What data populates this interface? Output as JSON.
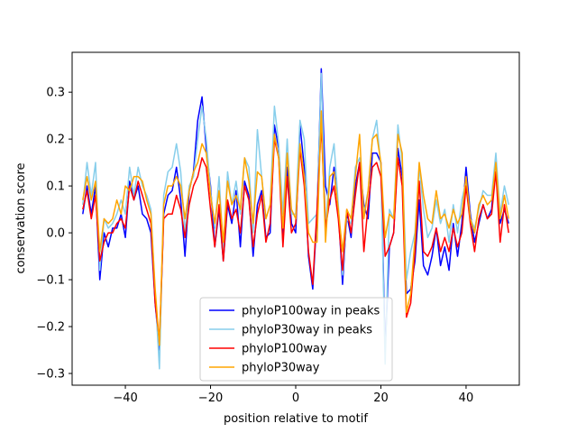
{
  "chart_data": {
    "type": "line",
    "title": "",
    "xlabel": "position relative to motif",
    "ylabel": "conservation score",
    "xlim": [
      -52.5,
      52.5
    ],
    "ylim": [
      -0.325,
      0.385
    ],
    "xticks": [
      -40,
      -20,
      0,
      20,
      40
    ],
    "yticks": [
      -0.3,
      -0.2,
      -0.1,
      0.0,
      0.1,
      0.2,
      0.3
    ],
    "ytick_labels": [
      "−0.3",
      "−0.2",
      "−0.1",
      "0.0",
      "0.1",
      "0.2",
      "0.3"
    ],
    "xtick_labels": [
      "−40",
      "−20",
      "0",
      "20",
      "40"
    ],
    "grid": false,
    "legend_position": "lower-center",
    "x": [
      -50,
      -49,
      -48,
      -47,
      -46,
      -45,
      -44,
      -43,
      -42,
      -41,
      -40,
      -39,
      -38,
      -37,
      -36,
      -35,
      -34,
      -33,
      -32,
      -31,
      -30,
      -29,
      -28,
      -27,
      -26,
      -25,
      -24,
      -23,
      -22,
      -21,
      -20,
      -19,
      -18,
      -17,
      -16,
      -15,
      -14,
      -13,
      -12,
      -11,
      -10,
      -9,
      -8,
      -7,
      -6,
      -5,
      -4,
      -3,
      -2,
      -1,
      0,
      1,
      2,
      3,
      4,
      5,
      6,
      7,
      8,
      9,
      10,
      11,
      12,
      13,
      14,
      15,
      16,
      17,
      18,
      19,
      20,
      21,
      22,
      23,
      24,
      25,
      26,
      27,
      28,
      29,
      30,
      31,
      32,
      33,
      34,
      35,
      36,
      37,
      38,
      39,
      40,
      41,
      42,
      43,
      44,
      45,
      46,
      47,
      48,
      49,
      50
    ],
    "series": [
      {
        "name": "phyloP100way in peaks",
        "color": "#0000ff",
        "values": [
          0.04,
          0.1,
          0.04,
          0.1,
          -0.1,
          0.0,
          -0.03,
          0.01,
          0.01,
          0.04,
          -0.01,
          0.11,
          0.07,
          0.1,
          0.04,
          0.03,
          0.0,
          -0.15,
          -0.25,
          0.04,
          0.08,
          0.09,
          0.14,
          0.07,
          -0.05,
          0.09,
          0.13,
          0.24,
          0.29,
          0.18,
          0.1,
          -0.03,
          0.05,
          -0.06,
          0.06,
          0.02,
          0.09,
          -0.03,
          0.11,
          0.08,
          -0.05,
          0.06,
          0.09,
          -0.01,
          0.0,
          0.23,
          0.18,
          -0.02,
          0.14,
          0.02,
          0.0,
          0.23,
          0.14,
          -0.05,
          -0.12,
          0.04,
          0.35,
          0.1,
          0.06,
          0.14,
          0.05,
          -0.11,
          0.04,
          -0.01,
          0.1,
          0.15,
          0.06,
          0.03,
          0.17,
          0.17,
          0.15,
          -0.25,
          -0.03,
          0.0,
          0.18,
          0.12,
          -0.13,
          -0.12,
          -0.06,
          0.07,
          -0.07,
          -0.09,
          -0.05,
          0.01,
          -0.07,
          -0.03,
          -0.08,
          0.02,
          -0.05,
          0.02,
          0.14,
          0.04,
          -0.02,
          0.02,
          0.06,
          0.03,
          0.05,
          0.16,
          0.02,
          0.05,
          0.02
        ]
      },
      {
        "name": "phyloP30way in peaks",
        "color": "#87ceeb",
        "values": [
          0.06,
          0.15,
          0.08,
          0.15,
          -0.08,
          0.03,
          0.01,
          0.02,
          0.04,
          0.07,
          0.04,
          0.14,
          0.08,
          0.14,
          0.1,
          0.08,
          0.05,
          -0.13,
          -0.29,
          0.08,
          0.13,
          0.14,
          0.19,
          0.13,
          0.0,
          0.1,
          0.12,
          0.2,
          0.27,
          0.2,
          0.09,
          0.01,
          0.12,
          -0.04,
          0.13,
          0.06,
          0.11,
          0.04,
          0.16,
          0.14,
          0.0,
          0.22,
          0.12,
          0.03,
          0.06,
          0.27,
          0.19,
          0.04,
          0.2,
          0.04,
          0.04,
          0.24,
          0.2,
          0.02,
          0.03,
          0.04,
          0.34,
          0.01,
          0.14,
          0.19,
          0.06,
          -0.09,
          0.03,
          0.02,
          0.14,
          0.16,
          0.04,
          0.09,
          0.2,
          0.24,
          0.14,
          -0.28,
          0.05,
          0.03,
          0.23,
          0.15,
          -0.1,
          -0.04,
          0.0,
          0.14,
          0.05,
          -0.01,
          0.01,
          0.07,
          0.02,
          0.05,
          -0.02,
          0.06,
          0.0,
          0.07,
          0.11,
          0.03,
          0.01,
          0.05,
          0.09,
          0.08,
          0.08,
          0.17,
          0.04,
          0.1,
          0.06
        ]
      },
      {
        "name": "phyloP100way",
        "color": "#ff0000",
        "values": [
          0.05,
          0.09,
          0.03,
          0.08,
          -0.06,
          -0.02,
          0.0,
          0.0,
          0.02,
          0.03,
          0.01,
          0.1,
          0.07,
          0.11,
          0.08,
          0.05,
          0.02,
          -0.15,
          -0.23,
          0.03,
          0.04,
          0.04,
          0.08,
          0.05,
          -0.01,
          0.06,
          0.1,
          0.12,
          0.16,
          0.14,
          0.05,
          -0.03,
          0.06,
          -0.06,
          0.07,
          0.03,
          0.05,
          0.0,
          0.1,
          0.07,
          -0.03,
          0.04,
          0.08,
          -0.02,
          0.02,
          0.2,
          0.16,
          -0.03,
          0.12,
          0.0,
          0.02,
          0.18,
          0.1,
          -0.04,
          -0.11,
          0.05,
          0.23,
          0.01,
          0.07,
          0.1,
          0.03,
          -0.08,
          0.05,
          0.0,
          0.08,
          0.15,
          -0.04,
          0.06,
          0.14,
          0.15,
          0.12,
          -0.05,
          -0.03,
          0.0,
          0.16,
          0.1,
          -0.18,
          -0.15,
          -0.04,
          0.11,
          -0.04,
          -0.05,
          -0.03,
          0.01,
          -0.04,
          -0.01,
          -0.04,
          0.01,
          -0.03,
          0.0,
          0.1,
          0.02,
          -0.04,
          0.03,
          0.06,
          0.03,
          0.04,
          0.13,
          -0.02,
          0.06,
          0.0
        ]
      },
      {
        "name": "phyloP30way",
        "color": "#ffa500",
        "values": [
          0.07,
          0.12,
          0.07,
          0.11,
          -0.04,
          0.03,
          0.02,
          0.03,
          0.07,
          0.04,
          0.1,
          0.09,
          0.12,
          0.12,
          0.11,
          0.07,
          0.04,
          -0.12,
          -0.24,
          0.06,
          0.1,
          0.1,
          0.12,
          0.1,
          0.03,
          0.09,
          0.13,
          0.15,
          0.19,
          0.17,
          0.08,
          0.02,
          0.09,
          -0.02,
          0.11,
          0.06,
          0.08,
          0.05,
          0.16,
          0.11,
          0.02,
          0.13,
          0.12,
          0.03,
          0.06,
          0.21,
          0.16,
          0.01,
          0.17,
          0.05,
          0.03,
          0.19,
          0.12,
          0.0,
          -0.02,
          -0.02,
          0.26,
          -0.02,
          0.12,
          0.13,
          0.05,
          -0.04,
          0.05,
          0.03,
          0.12,
          0.21,
          0.03,
          0.09,
          0.2,
          0.21,
          0.15,
          -0.01,
          0.04,
          0.03,
          0.21,
          0.17,
          -0.17,
          -0.13,
          -0.01,
          0.15,
          0.08,
          0.03,
          0.02,
          0.09,
          0.03,
          0.04,
          0.01,
          0.05,
          0.02,
          0.04,
          0.12,
          0.03,
          0.0,
          0.06,
          0.08,
          0.06,
          0.07,
          0.15,
          0.03,
          0.08,
          0.03
        ]
      }
    ]
  }
}
